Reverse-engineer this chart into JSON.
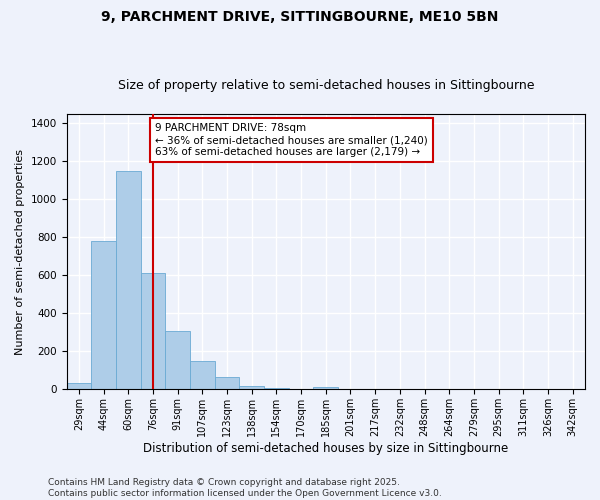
{
  "title_line1": "9, PARCHMENT DRIVE, SITTINGBOURNE, ME10 5BN",
  "title_line2": "Size of property relative to semi-detached houses in Sittingbourne",
  "xlabel": "Distribution of semi-detached houses by size in Sittingbourne",
  "ylabel": "Number of semi-detached properties",
  "footnote": "Contains HM Land Registry data © Crown copyright and database right 2025.\nContains public sector information licensed under the Open Government Licence v3.0.",
  "categories": [
    "29sqm",
    "44sqm",
    "60sqm",
    "76sqm",
    "91sqm",
    "107sqm",
    "123sqm",
    "138sqm",
    "154sqm",
    "170sqm",
    "185sqm",
    "201sqm",
    "217sqm",
    "232sqm",
    "248sqm",
    "264sqm",
    "279sqm",
    "295sqm",
    "311sqm",
    "326sqm",
    "342sqm"
  ],
  "values": [
    35,
    780,
    1150,
    615,
    310,
    150,
    65,
    18,
    10,
    0,
    13,
    0,
    0,
    0,
    0,
    0,
    0,
    0,
    0,
    0,
    0
  ],
  "bar_color": "#aecde8",
  "bar_edge_color": "#6aaad4",
  "annotation_box_text": "9 PARCHMENT DRIVE: 78sqm\n← 36% of semi-detached houses are smaller (1,240)\n63% of semi-detached houses are larger (2,179) →",
  "annotation_box_color": "#ffffff",
  "annotation_box_edge_color": "#cc0000",
  "vline_x": 3.0,
  "vline_color": "#cc0000",
  "ylim": [
    0,
    1450
  ],
  "background_color": "#eef2fb",
  "grid_color": "#ffffff",
  "title_fontsize": 10,
  "subtitle_fontsize": 9,
  "tick_fontsize": 7,
  "ylabel_fontsize": 8,
  "xlabel_fontsize": 8.5,
  "footnote_fontsize": 6.5,
  "ann_fontsize": 7.5
}
